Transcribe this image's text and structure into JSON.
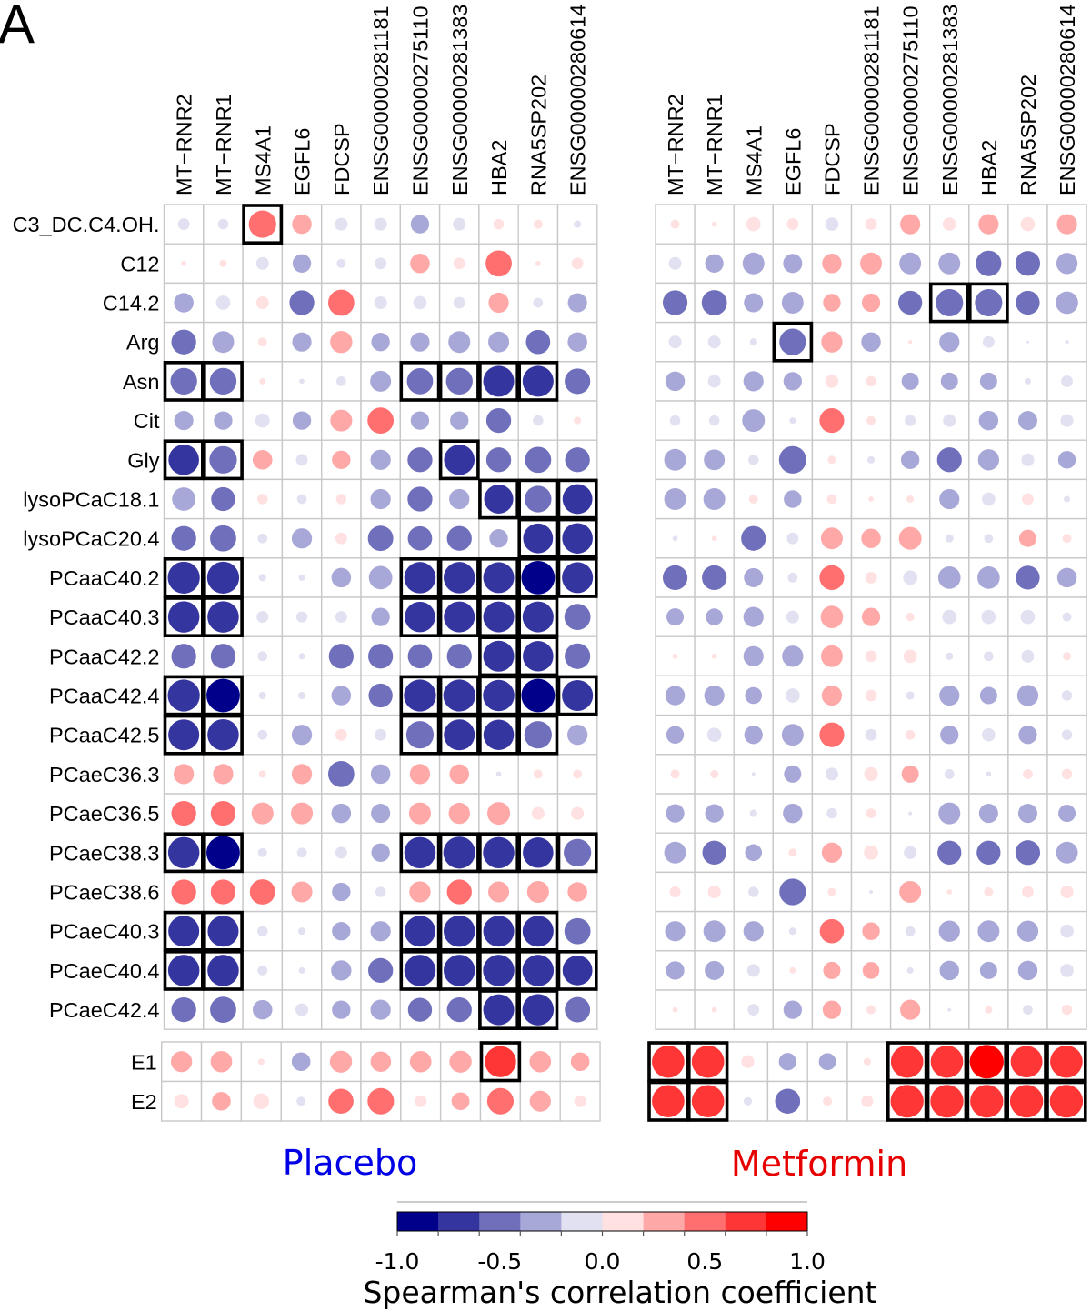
{
  "figure": {
    "panel_label": "A"
  },
  "chart_data": {
    "type": "heatmap",
    "subtype": "correlation-circle-matrix",
    "columns": [
      "MT−RNR2",
      "MT−RNR1",
      "MS4A1",
      "EGFL6",
      "FDCSP",
      "ENSG00000281181",
      "ENSG00000275110",
      "ENSG00000281383",
      "HBA2",
      "RNA5SP202",
      "ENSG00000280614"
    ],
    "rows": [
      "C3_DC.C4.OH.",
      "C12",
      "C14.2",
      "Arg",
      "Asn",
      "Cit",
      "Gly",
      "lysoPCaC18.1",
      "lysoPCaC20.4",
      "PCaaC40.2",
      "PCaaC40.3",
      "PCaaC42.2",
      "PCaaC42.4",
      "PCaaC42.5",
      "PCaeC36.3",
      "PCaeC36.5",
      "PCaeC38.3",
      "PCaeC38.6",
      "PCaeC40.3",
      "PCaeC40.4",
      "PCaeC42.4"
    ],
    "extra_rows": [
      "E1",
      "E2"
    ],
    "boxed_meaning": "highlighted (boxed) cells",
    "colorbar": {
      "label": "Spearman's correlation coefficient",
      "range": [
        -1,
        1
      ],
      "bins": 10,
      "colors": [
        "#00008B",
        "#3535A0",
        "#6F6FBC",
        "#A8A8D8",
        "#E1E1F1",
        "#FFE1E1",
        "#FFA8A8",
        "#FF6F6F",
        "#FF3636",
        "#FF0000"
      ],
      "tick_values": [
        -1.0,
        -0.5,
        0.0,
        0.5,
        1.0
      ],
      "tick_labels": [
        "-1.0",
        "-0.5",
        "0.0",
        "0.5",
        "1.0"
      ]
    },
    "panels": [
      {
        "name": "Placebo",
        "title_color": "#0000E6",
        "values": [
          [
            -0.1,
            -0.08,
            0.55,
            0.28,
            -0.12,
            -0.12,
            -0.25,
            -0.12,
            0.08,
            0.06,
            -0.04
          ],
          [
            0.02,
            0.04,
            -0.12,
            -0.25,
            -0.06,
            -0.1,
            0.28,
            0.1,
            0.5,
            0.02,
            0.1
          ],
          [
            -0.28,
            -0.15,
            0.12,
            -0.45,
            0.5,
            -0.12,
            -0.13,
            -0.1,
            0.3,
            -0.07,
            -0.27
          ],
          [
            -0.45,
            -0.35,
            0.06,
            -0.27,
            0.36,
            -0.25,
            -0.27,
            -0.35,
            -0.32,
            -0.43,
            -0.28
          ],
          [
            -0.52,
            -0.52,
            0.03,
            -0.02,
            -0.07,
            -0.32,
            -0.5,
            -0.52,
            -0.7,
            -0.7,
            -0.48
          ],
          [
            -0.27,
            -0.25,
            -0.15,
            -0.25,
            0.35,
            0.5,
            -0.25,
            -0.25,
            -0.45,
            -0.08,
            0.04
          ],
          [
            -0.68,
            -0.55,
            0.28,
            -0.1,
            0.25,
            -0.3,
            -0.45,
            -0.68,
            -0.45,
            -0.5,
            -0.45
          ],
          [
            -0.4,
            -0.42,
            0.08,
            -0.07,
            0.08,
            -0.3,
            -0.45,
            -0.3,
            -0.62,
            -0.52,
            -0.65
          ],
          [
            -0.45,
            -0.5,
            -0.07,
            -0.3,
            0.1,
            -0.47,
            -0.43,
            -0.45,
            -0.25,
            -0.65,
            -0.68
          ],
          [
            -0.75,
            -0.75,
            -0.04,
            -0.03,
            -0.28,
            -0.4,
            -0.72,
            -0.72,
            -0.7,
            -0.82,
            -0.7
          ],
          [
            -0.72,
            -0.72,
            -0.1,
            -0.09,
            -0.1,
            -0.25,
            -0.68,
            -0.7,
            -0.7,
            -0.7,
            -0.5
          ],
          [
            -0.45,
            -0.45,
            -0.07,
            -0.03,
            -0.45,
            -0.45,
            -0.43,
            -0.45,
            -0.7,
            -0.68,
            -0.48
          ],
          [
            -0.75,
            -0.82,
            -0.04,
            -0.04,
            -0.28,
            -0.42,
            -0.75,
            -0.75,
            -0.72,
            -0.82,
            -0.7
          ],
          [
            -0.7,
            -0.72,
            -0.07,
            -0.3,
            0.1,
            -0.1,
            -0.55,
            -0.7,
            -0.68,
            -0.55,
            -0.3
          ],
          [
            0.3,
            0.3,
            0.04,
            0.3,
            -0.5,
            -0.28,
            0.3,
            0.28,
            -0.02,
            0.06,
            0.06
          ],
          [
            0.45,
            0.45,
            0.35,
            0.35,
            -0.28,
            -0.27,
            0.35,
            0.33,
            0.38,
            0.12,
            0.12
          ],
          [
            -0.72,
            -0.82,
            -0.06,
            -0.07,
            -0.1,
            -0.25,
            -0.72,
            -0.75,
            -0.72,
            -0.68,
            -0.55
          ],
          [
            0.45,
            0.45,
            0.47,
            0.32,
            -0.25,
            -0.08,
            0.33,
            0.45,
            0.32,
            0.35,
            0.28
          ],
          [
            -0.7,
            -0.7,
            -0.08,
            -0.04,
            -0.25,
            -0.3,
            -0.7,
            -0.72,
            -0.7,
            -0.7,
            -0.5
          ],
          [
            -0.72,
            -0.72,
            -0.07,
            -0.03,
            -0.3,
            -0.45,
            -0.72,
            -0.72,
            -0.72,
            -0.72,
            -0.65
          ],
          [
            -0.45,
            -0.5,
            -0.28,
            -0.12,
            -0.25,
            -0.3,
            -0.42,
            -0.45,
            -0.7,
            -0.72,
            -0.47
          ]
        ],
        "boxed": [
          [
            2
          ],
          [],
          [],
          [],
          [
            0,
            1,
            6,
            7,
            8,
            9
          ],
          [],
          [
            0,
            1,
            7
          ],
          [
            8,
            9,
            10
          ],
          [
            9,
            10
          ],
          [
            0,
            1,
            6,
            7,
            8,
            9,
            10
          ],
          [
            0,
            1,
            6,
            7,
            8,
            9
          ],
          [
            8,
            9
          ],
          [
            0,
            1,
            6,
            7,
            8,
            9,
            10
          ],
          [
            0,
            1,
            6,
            7,
            8,
            9
          ],
          [],
          [],
          [
            0,
            1,
            6,
            7,
            8,
            9,
            10
          ],
          [],
          [
            0,
            1,
            6,
            7,
            8,
            9
          ],
          [
            0,
            1,
            6,
            7,
            8,
            9,
            10
          ],
          [
            8,
            9
          ]
        ],
        "extra_values": [
          [
            0.32,
            0.33,
            0.03,
            -0.25,
            0.35,
            0.3,
            0.33,
            0.35,
            0.7,
            0.33,
            0.25
          ],
          [
            0.15,
            0.25,
            0.18,
            -0.06,
            0.45,
            0.5,
            0.1,
            0.23,
            0.5,
            0.32,
            0.1
          ]
        ],
        "extra_boxed": [
          [
            8
          ],
          []
        ]
      },
      {
        "name": "Metformin",
        "title_color": "#E60000",
        "values": [
          [
            0.06,
            0.02,
            0.15,
            0.1,
            -0.13,
            0.1,
            0.3,
            0.13,
            0.3,
            0.15,
            0.3
          ],
          [
            -0.12,
            -0.25,
            -0.35,
            -0.27,
            0.28,
            0.35,
            -0.35,
            -0.35,
            -0.48,
            -0.45,
            -0.33
          ],
          [
            -0.45,
            -0.47,
            -0.27,
            -0.35,
            0.23,
            0.25,
            -0.42,
            -0.55,
            -0.55,
            -0.42,
            -0.37
          ],
          [
            -0.12,
            -0.12,
            -0.04,
            -0.52,
            0.33,
            -0.28,
            0.01,
            -0.3,
            -0.1,
            -0.005,
            -0.01
          ],
          [
            -0.28,
            -0.12,
            -0.3,
            -0.25,
            0.13,
            0.08,
            -0.22,
            -0.22,
            -0.22,
            -0.03,
            -0.1
          ],
          [
            -0.08,
            -0.08,
            -0.38,
            -0.03,
            0.45,
            0.06,
            -0.09,
            -0.12,
            -0.28,
            -0.27,
            -0.12
          ],
          [
            -0.35,
            -0.32,
            -0.08,
            -0.55,
            0.05,
            -0.04,
            -0.25,
            -0.45,
            -0.33,
            -0.12,
            -0.23
          ],
          [
            -0.35,
            -0.35,
            0.06,
            -0.23,
            0.07,
            0.02,
            0.04,
            -0.3,
            -0.13,
            0.1,
            -0.03
          ],
          [
            -0.02,
            0.02,
            -0.45,
            -0.1,
            0.35,
            0.28,
            0.38,
            -0.05,
            -0.06,
            0.22,
            0.06
          ],
          [
            -0.45,
            -0.45,
            -0.27,
            -0.07,
            0.45,
            0.1,
            -0.15,
            -0.37,
            -0.37,
            -0.42,
            -0.28
          ],
          [
            -0.22,
            -0.21,
            -0.3,
            -0.12,
            0.37,
            0.25,
            0.05,
            -0.15,
            -0.15,
            -0.15,
            -0.06
          ],
          [
            0.02,
            0.02,
            -0.3,
            -0.33,
            0.35,
            0.1,
            0.13,
            -0.04,
            -0.07,
            -0.12,
            0.05
          ],
          [
            -0.28,
            -0.3,
            -0.21,
            -0.15,
            0.3,
            0.1,
            -0.05,
            -0.3,
            -0.22,
            -0.33,
            -0.08
          ],
          [
            -0.23,
            -0.15,
            -0.25,
            -0.35,
            0.45,
            -0.1,
            0.07,
            -0.25,
            -0.13,
            -0.25,
            -0.08
          ],
          [
            0.06,
            0.05,
            -0.01,
            -0.22,
            -0.12,
            0.14,
            0.22,
            -0.07,
            -0.02,
            0.07,
            0.08
          ],
          [
            -0.25,
            -0.25,
            -0.04,
            -0.28,
            -0.08,
            0.07,
            -0.01,
            -0.35,
            -0.27,
            -0.27,
            -0.22
          ],
          [
            -0.35,
            -0.42,
            -0.21,
            0.05,
            0.3,
            0.15,
            -0.12,
            -0.42,
            -0.42,
            -0.45,
            -0.35
          ],
          [
            0.09,
            0.12,
            -0.08,
            -0.52,
            0.05,
            -0.01,
            0.35,
            0.02,
            0.06,
            0.1,
            0.12
          ],
          [
            -0.3,
            -0.35,
            -0.3,
            -0.04,
            0.43,
            0.23,
            -0.07,
            -0.33,
            -0.35,
            -0.33,
            -0.13
          ],
          [
            -0.25,
            -0.27,
            -0.12,
            0.03,
            0.22,
            0.21,
            -0.03,
            -0.28,
            -0.22,
            -0.28,
            -0.13
          ],
          [
            0.02,
            0.02,
            -0.1,
            -0.25,
            0.25,
            0.06,
            0.3,
            -0.01,
            0.04,
            -0.07,
            0.08
          ]
        ],
        "boxed": [
          [],
          [],
          [
            7,
            8
          ],
          [
            3
          ],
          [],
          [],
          [],
          [],
          [],
          [],
          [],
          [],
          [],
          [],
          [],
          [],
          [],
          [],
          [],
          [],
          []
        ],
        "extra_values": [
          [
            0.75,
            0.75,
            0.12,
            -0.22,
            -0.21,
            0.04,
            0.75,
            0.75,
            0.82,
            0.72,
            0.75
          ],
          [
            0.75,
            0.75,
            -0.05,
            -0.45,
            0.06,
            0.1,
            0.78,
            0.78,
            0.78,
            0.78,
            0.78
          ]
        ],
        "extra_boxed": [
          [
            0,
            1,
            6,
            7,
            8,
            9,
            10
          ],
          [
            0,
            1,
            6,
            7,
            8,
            9,
            10
          ]
        ]
      }
    ]
  }
}
